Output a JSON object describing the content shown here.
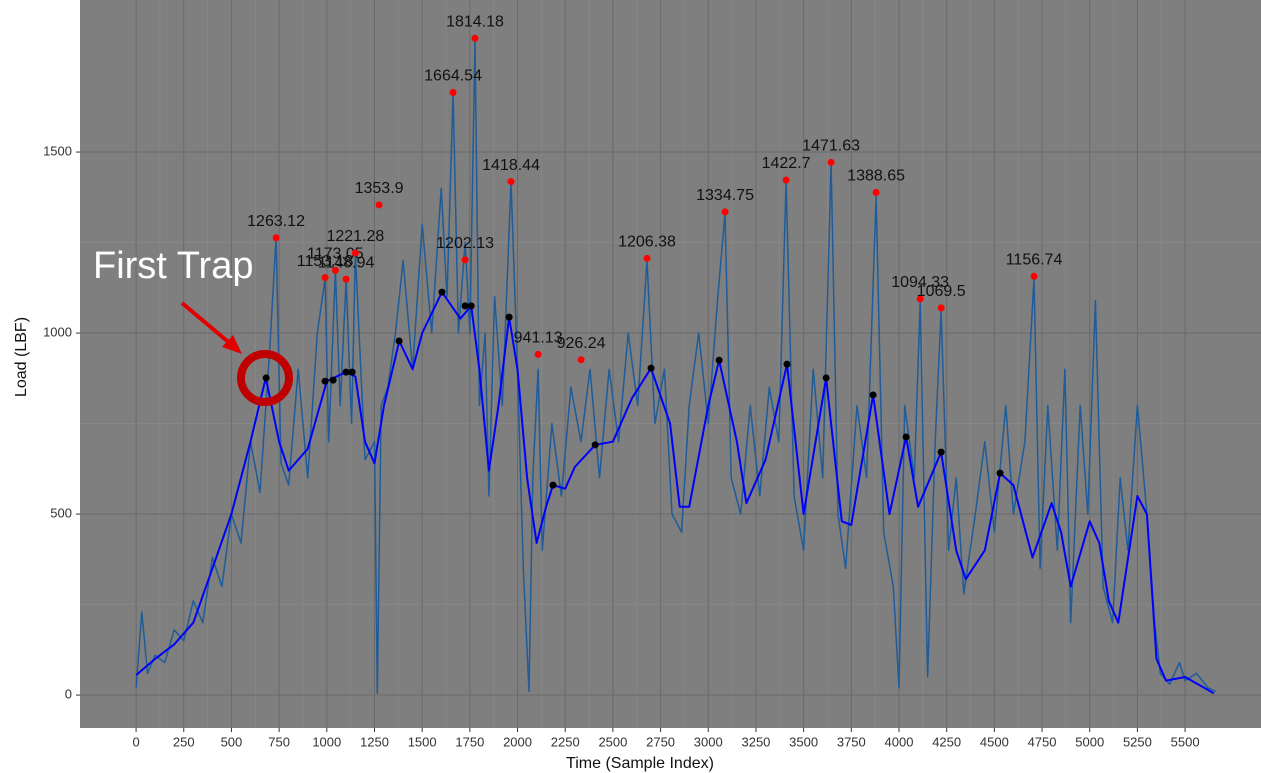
{
  "chart_data": {
    "type": "line",
    "x_label": "Time (Sample Index)",
    "y_label": "Load (LBF)",
    "annotation": "First Trap",
    "xlim": [
      -294,
      5898
    ],
    "ylim": [
      -91,
      1920
    ],
    "xticks": [
      0,
      250,
      500,
      750,
      1000,
      1250,
      1500,
      1750,
      2000,
      2250,
      2500,
      2750,
      3000,
      3250,
      3500,
      3750,
      4000,
      4250,
      4500,
      4750,
      5000,
      5250,
      5500
    ],
    "yticks": [
      0,
      500,
      1000,
      1500
    ],
    "grid": true,
    "series": [
      {
        "mode": "line",
        "color": "#1f5c99",
        "width": 1.5,
        "x": [
          0,
          30,
          60,
          100,
          150,
          200,
          250,
          300,
          350,
          400,
          450,
          500,
          550,
          600,
          650,
          700,
          734,
          760,
          800,
          850,
          900,
          950,
          991,
          1010,
          1045,
          1070,
          1101,
          1130,
          1150,
          1200,
          1250,
          1265,
          1285,
          1320,
          1360,
          1400,
          1450,
          1500,
          1550,
          1600,
          1630,
          1662,
          1690,
          1725,
          1750,
          1777,
          1800,
          1830,
          1850,
          1880,
          1920,
          1966,
          2000,
          2030,
          2060,
          2080,
          2108,
          2130,
          2180,
          2230,
          2280,
          2333,
          2380,
          2430,
          2480,
          2530,
          2580,
          2630,
          2679,
          2720,
          2770,
          2810,
          2860,
          2900,
          2950,
          3000,
          3050,
          3088,
          3120,
          3170,
          3220,
          3270,
          3320,
          3370,
          3408,
          3450,
          3500,
          3550,
          3600,
          3644,
          3680,
          3720,
          3780,
          3830,
          3880,
          3920,
          3970,
          4000,
          4030,
          4080,
          4111,
          4150,
          4190,
          4221,
          4260,
          4300,
          4340,
          4400,
          4450,
          4500,
          4560,
          4600,
          4660,
          4708,
          4740,
          4780,
          4830,
          4870,
          4900,
          4950,
          4990,
          5030,
          5070,
          5120,
          5160,
          5200,
          5250,
          5300,
          5340,
          5370,
          5420,
          5470,
          5500,
          5560,
          5620,
          5660
        ],
        "values": [
          20,
          230,
          60,
          110,
          90,
          180,
          150,
          260,
          200,
          380,
          300,
          500,
          420,
          700,
          560,
          950,
          1263,
          640,
          580,
          900,
          600,
          1000,
          1150,
          700,
          1173,
          800,
          1148,
          750,
          1221,
          650,
          700,
          5,
          800,
          850,
          1000,
          1200,
          900,
          1300,
          1000,
          1400,
          1100,
          1664,
          1000,
          1250,
          1000,
          1814,
          800,
          1000,
          550,
          1100,
          800,
          1418,
          900,
          350,
          10,
          600,
          900,
          400,
          750,
          550,
          850,
          700,
          900,
          600,
          900,
          700,
          1000,
          800,
          1200,
          750,
          900,
          500,
          450,
          800,
          1000,
          750,
          1100,
          1330,
          600,
          500,
          800,
          550,
          850,
          700,
          1420,
          550,
          400,
          900,
          600,
          1470,
          500,
          350,
          800,
          600,
          1380,
          450,
          300,
          20,
          800,
          600,
          1090,
          50,
          700,
          1060,
          400,
          600,
          280,
          500,
          700,
          450,
          800,
          500,
          700,
          1150,
          350,
          800,
          400,
          900,
          200,
          800,
          500,
          1090,
          300,
          200,
          600,
          400,
          800,
          500,
          200,
          60,
          30,
          90,
          40,
          60,
          20,
          10
        ]
      },
      {
        "mode": "line",
        "color": "#0000ff",
        "width": 2,
        "x": [
          0,
          100,
          200,
          300,
          400,
          500,
          600,
          680,
          750,
          800,
          900,
          1000,
          1100,
          1150,
          1200,
          1250,
          1300,
          1380,
          1450,
          1500,
          1604,
          1700,
          1757,
          1800,
          1850,
          1900,
          1956,
          2000,
          2050,
          2100,
          2150,
          2186,
          2250,
          2300,
          2407,
          2500,
          2600,
          2700,
          2800,
          2850,
          2900,
          3000,
          3057,
          3150,
          3200,
          3300,
          3413,
          3500,
          3618,
          3700,
          3750,
          3864,
          3950,
          4037,
          4100,
          4221,
          4300,
          4350,
          4450,
          4530,
          4600,
          4700,
          4800,
          4850,
          4900,
          5000,
          5050,
          5100,
          5150,
          5250,
          5300,
          5350,
          5400,
          5500,
          5600,
          5650
        ],
        "values": [
          55,
          100,
          140,
          200,
          350,
          500,
          700,
          876,
          700,
          620,
          680,
          867,
          892,
          880,
          700,
          640,
          800,
          978,
          900,
          1000,
          1113,
          1040,
          1075,
          900,
          620,
          800,
          1044,
          900,
          600,
          420,
          520,
          580,
          570,
          630,
          691,
          700,
          820,
          903,
          750,
          520,
          520,
          800,
          925,
          700,
          530,
          650,
          914,
          500,
          876,
          480,
          470,
          829,
          500,
          713,
          520,
          671,
          400,
          320,
          400,
          613,
          580,
          380,
          530,
          450,
          300,
          480,
          420,
          260,
          200,
          550,
          500,
          100,
          40,
          50,
          20,
          5
        ]
      },
      {
        "mode": "points",
        "color": "#ff0000",
        "labels": true,
        "x": [
          734,
          991,
          1045,
          1101,
          1150,
          1274,
          1662,
          1725,
          1777,
          1966,
          2108,
          2333,
          2679,
          3088,
          3408,
          3644,
          3880,
          4111,
          4221,
          4708
        ],
        "values": [
          1263.12,
          1153.18,
          1173.05,
          1148.94,
          1221.28,
          1353.9,
          1664.54,
          1202.13,
          1814.18,
          1418.44,
          941.13,
          926.24,
          1206.38,
          1334.75,
          1422.7,
          1471.63,
          1388.65,
          1094.33,
          1069.5,
          1156.74
        ]
      },
      {
        "mode": "points",
        "color": "#000000",
        "labels": false,
        "x": [
          682,
          991,
          1033,
          1101,
          1133,
          1379,
          1604,
          1725,
          1757,
          1956,
          2186,
          2407,
          2700,
          3057,
          3413,
          3618,
          3864,
          4037,
          4221,
          4530
        ],
        "values": [
          876,
          867,
          870,
          892,
          892,
          978,
          1113,
          1075,
          1075,
          1044,
          580,
          691,
          903,
          925,
          914,
          876,
          829,
          713,
          671,
          613
        ]
      }
    ]
  }
}
